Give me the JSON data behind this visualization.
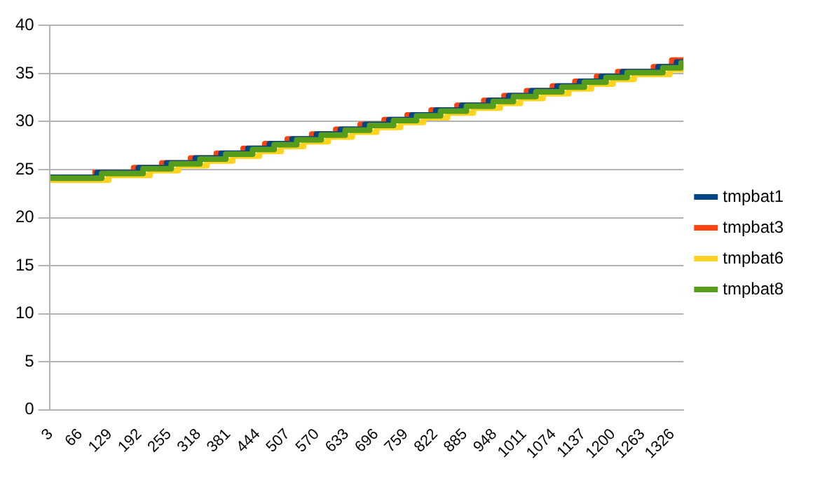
{
  "chart_data": {
    "type": "step",
    "xlim": [
      1,
      1350
    ],
    "xticks": [
      3,
      66,
      129,
      192,
      255,
      318,
      381,
      444,
      507,
      570,
      633,
      696,
      759,
      822,
      885,
      948,
      1011,
      1074,
      1137,
      1200,
      1263,
      1326
    ],
    "ylim": [
      0,
      40
    ],
    "yticks": [
      0,
      5,
      10,
      15,
      20,
      25,
      30,
      35,
      40
    ],
    "grid": "y",
    "legend": "right",
    "marker": "none",
    "line_style": "solid",
    "series": [
      {
        "name": "tmpbat1",
        "color": "#004586",
        "x": [
          3,
          102,
          190,
          250,
          311,
          366,
          423,
          469,
          517,
          569,
          620,
          672,
          723,
          772,
          823,
          878,
          935,
          978,
          1026,
          1081,
          1129,
          1175,
          1220,
          1296,
          1335,
          1350
        ],
        "values": [
          24.2,
          24.7,
          25.2,
          25.7,
          26.2,
          26.7,
          27.2,
          27.7,
          28.2,
          28.7,
          29.2,
          29.7,
          30.2,
          30.7,
          31.2,
          31.7,
          32.2,
          32.7,
          33.2,
          33.7,
          34.2,
          34.7,
          35.2,
          35.7,
          36.2,
          36.2
        ]
      },
      {
        "name": "tmpbat3",
        "color": "#ff420e",
        "x": [
          92,
          180,
          240,
          301,
          356,
          413,
          459,
          507,
          559,
          610,
          662,
          713,
          762,
          813,
          868,
          925,
          968,
          1016,
          1071,
          1119,
          1165,
          1210,
          1286,
          1325,
          1350
        ],
        "values": [
          24.7,
          25.2,
          25.7,
          26.2,
          26.7,
          27.2,
          27.7,
          28.2,
          28.7,
          29.2,
          29.7,
          30.2,
          30.7,
          31.2,
          31.7,
          32.2,
          32.7,
          33.2,
          33.7,
          34.2,
          34.7,
          35.2,
          35.7,
          36.4,
          36.4
        ]
      },
      {
        "name": "tmpbat6",
        "color": "#ffd320",
        "x": [
          3,
          127,
          215,
          275,
          336,
          391,
          448,
          494,
          542,
          594,
          645,
          697,
          748,
          797,
          848,
          903,
          960,
          1003,
          1051,
          1106,
          1154,
          1200,
          1245,
          1321,
          1348,
          1350
        ],
        "values": [
          23.9,
          24.4,
          24.9,
          25.4,
          25.9,
          26.4,
          26.9,
          27.4,
          27.9,
          28.4,
          28.9,
          29.4,
          29.9,
          30.4,
          30.9,
          31.4,
          31.9,
          32.4,
          32.9,
          33.4,
          33.9,
          34.4,
          34.9,
          35.4,
          35.9,
          35.9
        ]
      },
      {
        "name": "tmpbat8",
        "color": "#579d1c",
        "x": [
          3,
          112,
          200,
          260,
          321,
          376,
          433,
          479,
          527,
          579,
          630,
          682,
          733,
          782,
          833,
          888,
          945,
          988,
          1036,
          1091,
          1139,
          1185,
          1230,
          1306,
          1345,
          1350
        ],
        "values": [
          24.1,
          24.6,
          25.1,
          25.6,
          26.1,
          26.6,
          27.1,
          27.6,
          28.1,
          28.6,
          29.1,
          29.6,
          30.1,
          30.6,
          31.1,
          31.6,
          32.1,
          32.6,
          33.1,
          33.6,
          34.1,
          34.6,
          35.1,
          35.6,
          36.1,
          36.1
        ]
      }
    ]
  }
}
